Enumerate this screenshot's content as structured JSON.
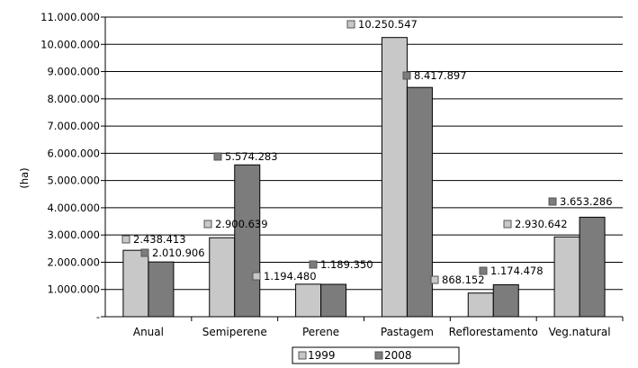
{
  "chart_data": {
    "type": "bar",
    "title": "",
    "xlabel": "",
    "ylabel": "(ha)",
    "ylim": [
      0,
      11000000
    ],
    "ytick_step": 1000000,
    "ytick_labels": [
      "-",
      "1.000.000",
      "2.000.000",
      "3.000.000",
      "4.000.000",
      "5.000.000",
      "6.000.000",
      "7.000.000",
      "8.000.000",
      "9.000.000",
      "10.000.000",
      "11.000.000"
    ],
    "grid": true,
    "legend_position": "bottom",
    "categories": [
      "Anual",
      "Semiperene",
      "Perene",
      "Pastagem",
      "Reflorestamento",
      "Veg.natural"
    ],
    "series": [
      {
        "name": "1999",
        "color": "#c8c8c8",
        "values": [
          2438413,
          2900639,
          1194480,
          10250547,
          868152,
          2930642
        ],
        "labels": [
          "2.438.413",
          "2.900.639",
          "1.194.480",
          "10.250.547",
          "868.152",
          "2.930.642"
        ]
      },
      {
        "name": "2008",
        "color": "#7c7c7c",
        "values": [
          2010906,
          5574283,
          1189350,
          8417897,
          1174478,
          3653286
        ],
        "labels": [
          "2.010.906",
          "5.574.283",
          "1.189.350",
          "8.417.897",
          "1.174.478",
          "3.653.286"
        ]
      }
    ]
  }
}
